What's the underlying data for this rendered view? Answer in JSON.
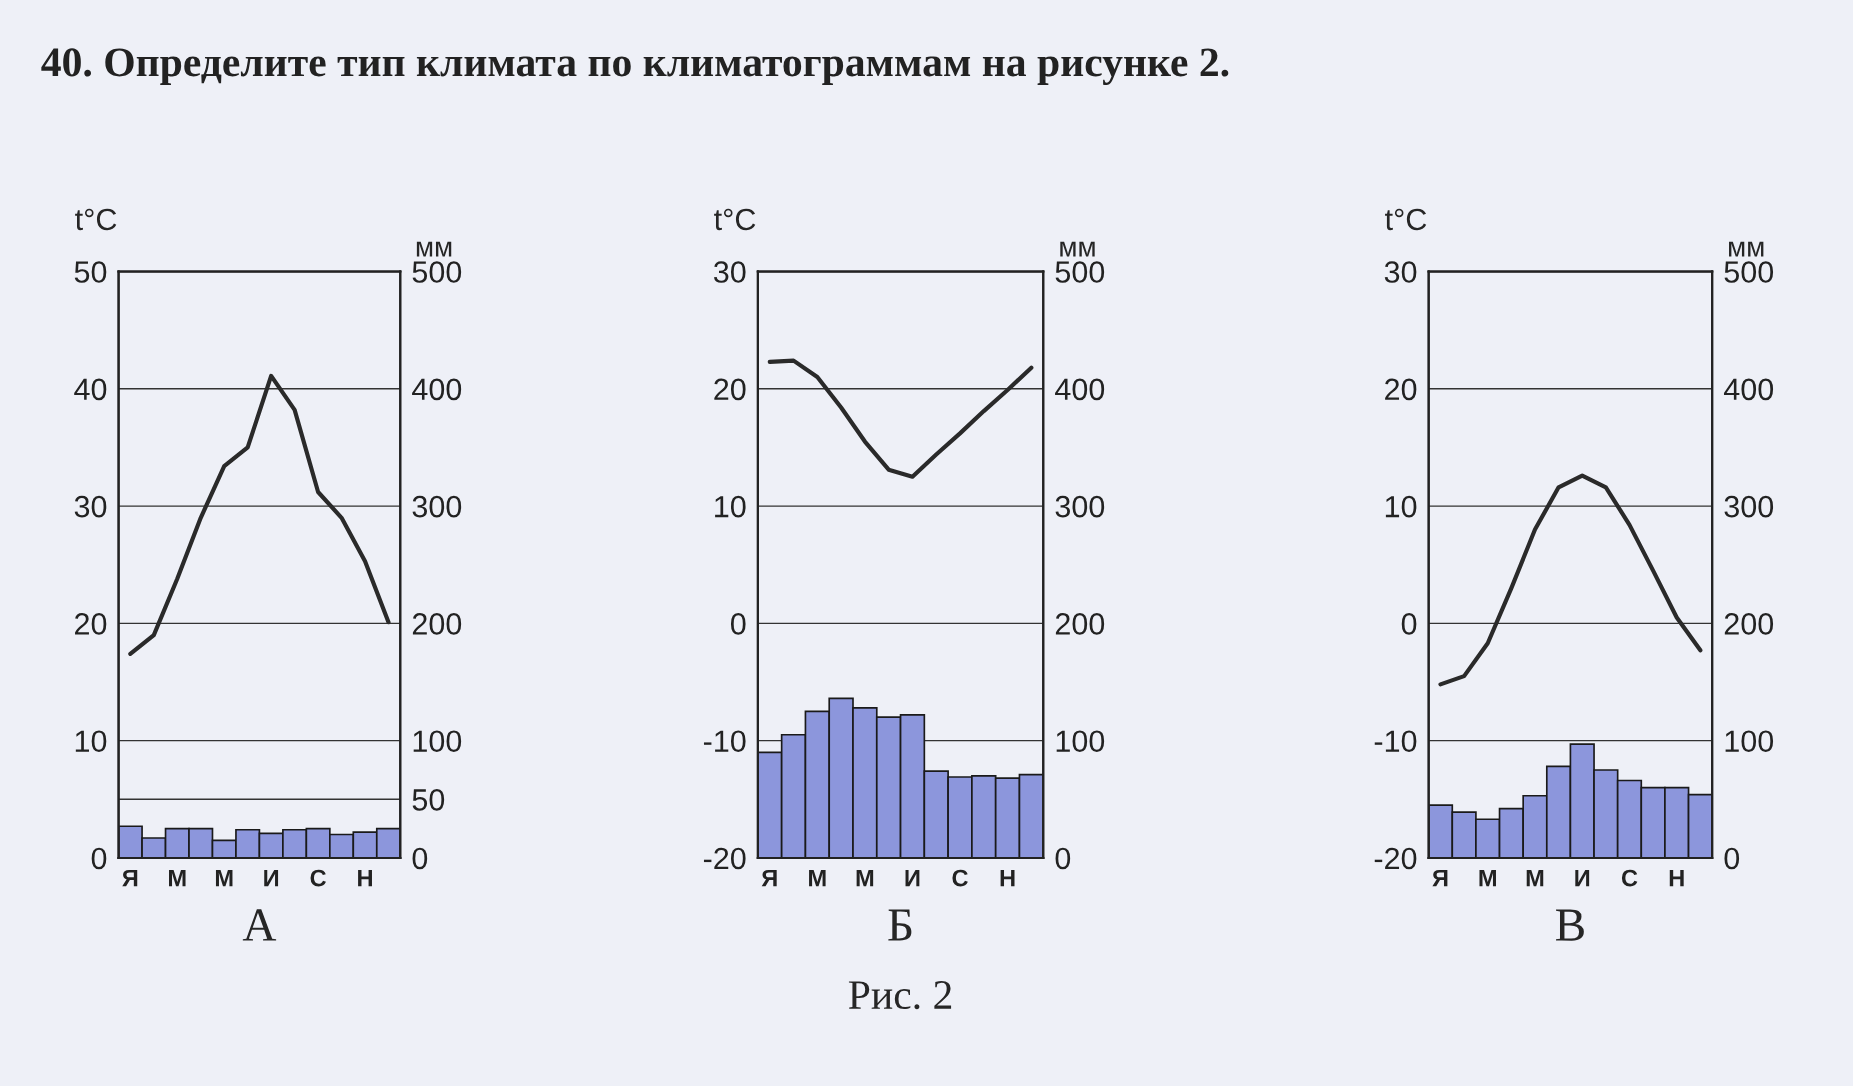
{
  "chart_data": [
    {
      "type": "bar",
      "title": "40. Определите тип климата по климатограммам на рисунке 2.",
      "xlabel": "А",
      "ylabel": "t°C",
      "y2label": "мм",
      "categories": [
        "Я",
        null,
        "М",
        null,
        "М",
        null,
        "И",
        null,
        "С",
        null,
        "Н",
        null
      ],
      "series": [
        {
          "axis": "y2",
          "color": "#8c96dc",
          "values": [
            27,
            17,
            25,
            25,
            15,
            24,
            21,
            24,
            25,
            20,
            22,
            25
          ]
        },
        {
          "type": "line",
          "color": "#2a2a2a",
          "values": [
            17.4,
            19,
            23.8,
            29,
            33.4,
            35,
            41.1,
            38.2,
            31.2,
            29,
            25.3,
            20.1
          ]
        }
      ],
      "ylim": [
        0,
        50
      ],
      "yticks": [
        0,
        10,
        20,
        30,
        40,
        50
      ],
      "y2lim": [
        0,
        500
      ],
      "y2ticks": [
        0,
        50,
        100,
        200,
        300,
        400,
        500
      ],
      "grid": true
    },
    {
      "type": "bar",
      "xlabel": "Б",
      "ylabel": "t°C",
      "y2label": "мм",
      "annotations": [
        "Рис. 2"
      ],
      "categories": [
        "Я",
        null,
        "М",
        null,
        "М",
        null,
        "И",
        null,
        "С",
        null,
        "Н",
        null
      ],
      "series": [
        {
          "axis": "y2",
          "color": "#8c96dc",
          "values": [
            90,
            105,
            125,
            136,
            128,
            120,
            122,
            74,
            69,
            70,
            68,
            71
          ]
        },
        {
          "type": "line",
          "color": "#2a2a2a",
          "values": [
            22.3,
            22.4,
            21,
            18.4,
            15.5,
            13.1,
            12.5,
            14.4,
            16.2,
            18.1,
            19.9,
            21.8
          ]
        }
      ],
      "ylim": [
        -20,
        30
      ],
      "yticks": [
        -20,
        -10,
        0,
        10,
        20,
        30
      ],
      "y2lim": [
        0,
        500
      ],
      "y2ticks": [
        0,
        100,
        200,
        300,
        400,
        500
      ],
      "grid": true
    },
    {
      "type": "bar",
      "xlabel": "В",
      "ylabel": "t°C",
      "y2label": "мм",
      "categories": [
        "Я",
        null,
        "М",
        null,
        "М",
        null,
        "И",
        null,
        "С",
        null,
        "Н",
        null
      ],
      "series": [
        {
          "axis": "y2",
          "color": "#8c96dc",
          "values": [
            45,
            39,
            33,
            42,
            53,
            78,
            97,
            75,
            66,
            60,
            60,
            54
          ]
        },
        {
          "type": "line",
          "color": "#2a2a2a",
          "values": [
            -5.2,
            -4.5,
            -1.7,
            3,
            8,
            11.6,
            12.6,
            11.6,
            8.4,
            4.5,
            0.5,
            -2.3
          ]
        }
      ],
      "ylim": [
        -20,
        30
      ],
      "yticks": [
        -20,
        -10,
        0,
        10,
        20,
        30
      ],
      "y2lim": [
        0,
        500
      ],
      "y2ticks": [
        0,
        100,
        200,
        300,
        400,
        500
      ],
      "grid": true
    }
  ]
}
